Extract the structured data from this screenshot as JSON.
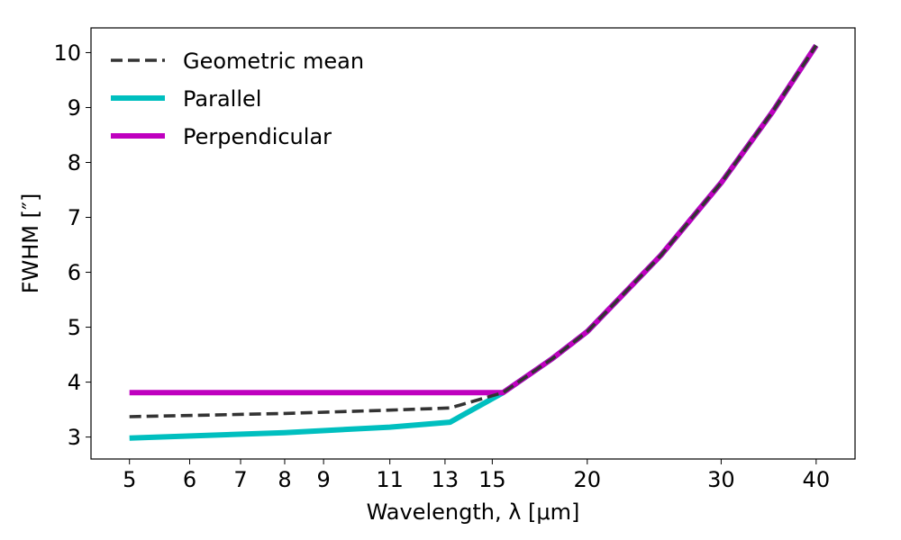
{
  "chart_data": {
    "type": "line",
    "title": "",
    "xlabel": "Wavelength,  λ [μm]",
    "ylabel": "FWHM [″]",
    "x_scale": "log",
    "xlim": [
      4.45,
      45
    ],
    "ylim": [
      2.6,
      10.45
    ],
    "x_ticks": [
      5,
      6,
      7,
      8,
      9,
      11,
      13,
      15,
      20,
      30,
      40
    ],
    "x_tick_labels": [
      "5",
      "6",
      "7",
      "8",
      "9",
      "11",
      "13",
      "15",
      "20",
      "30",
      "40"
    ],
    "y_ticks": [
      3,
      4,
      5,
      6,
      7,
      8,
      9,
      10
    ],
    "y_tick_labels": [
      "3",
      "4",
      "5",
      "6",
      "7",
      "8",
      "9",
      "10"
    ],
    "grid": false,
    "legend_position": "top-left",
    "series": [
      {
        "name": "Geometric mean",
        "color": "#333333",
        "style": "dashed",
        "x": [
          5,
          8,
          11,
          13.2,
          15.5,
          18,
          20,
          25,
          30,
          35,
          40
        ],
        "y": [
          3.37,
          3.43,
          3.49,
          3.53,
          3.81,
          4.43,
          4.92,
          6.31,
          7.63,
          8.91,
          10.13
        ]
      },
      {
        "name": "Parallel",
        "color": "#00bfbf",
        "style": "solid",
        "x": [
          5,
          8,
          11,
          13.2,
          15.5,
          18,
          20,
          25,
          30,
          35,
          40
        ],
        "y": [
          2.98,
          3.08,
          3.18,
          3.27,
          3.81,
          4.43,
          4.92,
          6.31,
          7.63,
          8.91,
          10.13
        ]
      },
      {
        "name": "Perpendicular",
        "color": "#bf00bf",
        "style": "solid",
        "x": [
          5,
          8,
          11,
          13.2,
          15.5,
          18,
          20,
          25,
          30,
          35,
          40
        ],
        "y": [
          3.81,
          3.81,
          3.81,
          3.81,
          3.81,
          4.43,
          4.92,
          6.31,
          7.63,
          8.91,
          10.13
        ]
      }
    ]
  }
}
